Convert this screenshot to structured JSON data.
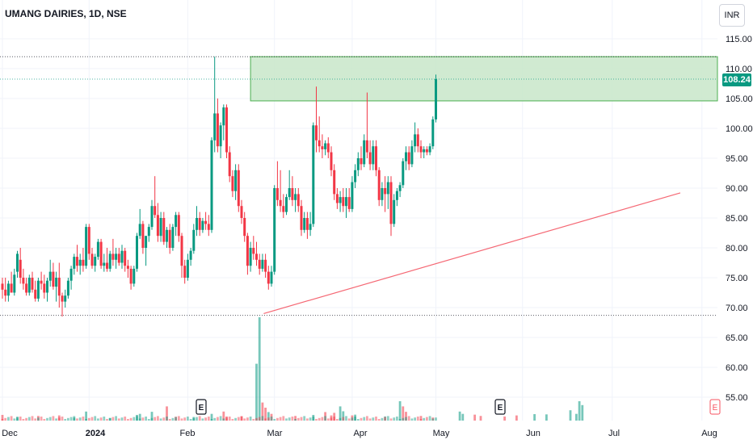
{
  "header": {
    "title": "UMANG DAIRIES, 1D, NSE",
    "currency": "INR",
    "last_price_label": "108.24"
  },
  "colors": {
    "up": "#089981",
    "down": "#f23645",
    "zone_fill": "#c8e6c9",
    "zone_border": "#4caf50",
    "trendline": "#f23645",
    "price_tag": "#089981"
  },
  "chart_data": {
    "type": "candlestick",
    "symbol": "UMANG DAIRIES",
    "interval": "1D",
    "exchange": "NSE",
    "currency": "INR",
    "ylim": [
      51,
      118
    ],
    "y_ticks": [
      "115.00",
      "110.00",
      "105.00",
      "100.00",
      "95.00",
      "90.00",
      "85.00",
      "80.00",
      "75.00",
      "70.00",
      "65.00",
      "60.00",
      "55.00"
    ],
    "x_ticks": [
      "Dec",
      "2024",
      "Feb",
      "Mar",
      "Apr",
      "May",
      "Jun",
      "Jul",
      "Aug"
    ],
    "last_price": 108.24,
    "resistance_zone": {
      "low": 104.6,
      "high": 112.0
    },
    "horizontal_levels": [
      112.0,
      108.24,
      68.7
    ],
    "trendline": {
      "start": {
        "bar": 82,
        "price": 69.0
      },
      "end": {
        "bar": 200,
        "price": 89.2
      }
    },
    "events": [
      {
        "bar": 60,
        "label": "E"
      },
      {
        "bar": 150,
        "label": "E"
      },
      {
        "bar": 213,
        "label": "E"
      }
    ],
    "candles": [
      {
        "o": 74,
        "h": 75,
        "l": 71.5,
        "c": 73
      },
      {
        "o": 73,
        "h": 75,
        "l": 71,
        "c": 72
      },
      {
        "o": 72,
        "h": 74.5,
        "l": 71,
        "c": 74
      },
      {
        "o": 74,
        "h": 76,
        "l": 73,
        "c": 72.5
      },
      {
        "o": 72.5,
        "h": 76.5,
        "l": 72,
        "c": 75.5
      },
      {
        "o": 76,
        "h": 79.5,
        "l": 75,
        "c": 79
      },
      {
        "o": 78,
        "h": 80,
        "l": 74,
        "c": 75
      },
      {
        "o": 75,
        "h": 76.5,
        "l": 73,
        "c": 74
      },
      {
        "o": 74,
        "h": 75,
        "l": 72,
        "c": 72.5
      },
      {
        "o": 72.5,
        "h": 75.5,
        "l": 72,
        "c": 75
      },
      {
        "o": 75,
        "h": 76,
        "l": 72.5,
        "c": 73
      },
      {
        "o": 73,
        "h": 74.5,
        "l": 71,
        "c": 71.5
      },
      {
        "o": 71.5,
        "h": 75,
        "l": 71,
        "c": 74.5
      },
      {
        "o": 74.5,
        "h": 76,
        "l": 73,
        "c": 74
      },
      {
        "o": 74,
        "h": 75.5,
        "l": 71.5,
        "c": 72.5
      },
      {
        "o": 72.5,
        "h": 75,
        "l": 71,
        "c": 74.5
      },
      {
        "o": 74.5,
        "h": 78,
        "l": 73.5,
        "c": 76
      },
      {
        "o": 76,
        "h": 77.5,
        "l": 73,
        "c": 73.5
      },
      {
        "o": 73.5,
        "h": 76,
        "l": 71,
        "c": 75
      },
      {
        "o": 75,
        "h": 77.5,
        "l": 70,
        "c": 72
      },
      {
        "o": 72,
        "h": 72.5,
        "l": 68.5,
        "c": 71
      },
      {
        "o": 71,
        "h": 73,
        "l": 70,
        "c": 72
      },
      {
        "o": 72,
        "h": 75,
        "l": 71.5,
        "c": 74.5
      },
      {
        "o": 74.5,
        "h": 77,
        "l": 73,
        "c": 76.5
      },
      {
        "o": 76.5,
        "h": 79,
        "l": 75.5,
        "c": 78.5
      },
      {
        "o": 78.5,
        "h": 80.5,
        "l": 76,
        "c": 77
      },
      {
        "o": 77,
        "h": 79,
        "l": 75.5,
        "c": 78
      },
      {
        "o": 78,
        "h": 80,
        "l": 76,
        "c": 77
      },
      {
        "o": 77,
        "h": 84,
        "l": 76.5,
        "c": 83.5
      },
      {
        "o": 83.5,
        "h": 84,
        "l": 78,
        "c": 79
      },
      {
        "o": 79,
        "h": 80,
        "l": 76.5,
        "c": 77
      },
      {
        "o": 77,
        "h": 79,
        "l": 76,
        "c": 78.5
      },
      {
        "o": 78.5,
        "h": 81.5,
        "l": 78,
        "c": 81
      },
      {
        "o": 81,
        "h": 81.5,
        "l": 76.5,
        "c": 77
      },
      {
        "o": 77,
        "h": 79,
        "l": 76,
        "c": 77.5
      },
      {
        "o": 77.5,
        "h": 80,
        "l": 76,
        "c": 76.5
      },
      {
        "o": 76.5,
        "h": 79.5,
        "l": 76,
        "c": 79
      },
      {
        "o": 79,
        "h": 81.5,
        "l": 77,
        "c": 78
      },
      {
        "o": 78,
        "h": 80,
        "l": 76.5,
        "c": 79
      },
      {
        "o": 79,
        "h": 80,
        "l": 77,
        "c": 77.5
      },
      {
        "o": 77.5,
        "h": 80.5,
        "l": 76.5,
        "c": 79.5
      },
      {
        "o": 79.5,
        "h": 80,
        "l": 76,
        "c": 77
      },
      {
        "o": 77,
        "h": 78,
        "l": 75,
        "c": 76.5
      },
      {
        "o": 76.5,
        "h": 77,
        "l": 73,
        "c": 74
      },
      {
        "o": 74,
        "h": 77,
        "l": 73.5,
        "c": 76.5
      },
      {
        "o": 76.5,
        "h": 82.5,
        "l": 76,
        "c": 82
      },
      {
        "o": 82,
        "h": 86.5,
        "l": 81.5,
        "c": 84
      },
      {
        "o": 84,
        "h": 84.5,
        "l": 79,
        "c": 80
      },
      {
        "o": 80,
        "h": 82,
        "l": 77,
        "c": 82
      },
      {
        "o": 82,
        "h": 84,
        "l": 81,
        "c": 83.5
      },
      {
        "o": 83.5,
        "h": 88,
        "l": 83,
        "c": 87
      },
      {
        "o": 87,
        "h": 92,
        "l": 85,
        "c": 85.5
      },
      {
        "o": 85.5,
        "h": 87.5,
        "l": 81,
        "c": 82
      },
      {
        "o": 82,
        "h": 86,
        "l": 81,
        "c": 85
      },
      {
        "o": 85,
        "h": 86,
        "l": 80.5,
        "c": 81
      },
      {
        "o": 81,
        "h": 83.5,
        "l": 80,
        "c": 83
      },
      {
        "o": 83,
        "h": 84,
        "l": 79,
        "c": 80
      },
      {
        "o": 80,
        "h": 84,
        "l": 79.5,
        "c": 83.5
      },
      {
        "o": 83.5,
        "h": 86,
        "l": 82,
        "c": 85.5
      },
      {
        "o": 85.5,
        "h": 86,
        "l": 81,
        "c": 82
      },
      {
        "o": 82,
        "h": 82.5,
        "l": 75,
        "c": 77
      },
      {
        "o": 77,
        "h": 78,
        "l": 74,
        "c": 75
      },
      {
        "o": 75,
        "h": 79,
        "l": 74.5,
        "c": 78
      },
      {
        "o": 78,
        "h": 80,
        "l": 77,
        "c": 79.5
      },
      {
        "o": 79.5,
        "h": 84,
        "l": 79,
        "c": 83
      },
      {
        "o": 83,
        "h": 87,
        "l": 82,
        "c": 85
      },
      {
        "o": 85,
        "h": 86,
        "l": 82,
        "c": 83
      },
      {
        "o": 83,
        "h": 85,
        "l": 82.5,
        "c": 84.5
      },
      {
        "o": 84.5,
        "h": 86,
        "l": 83,
        "c": 84
      },
      {
        "o": 84,
        "h": 85.5,
        "l": 82,
        "c": 83
      },
      {
        "o": 83,
        "h": 98.5,
        "l": 82.5,
        "c": 98
      },
      {
        "o": 98,
        "h": 112,
        "l": 96,
        "c": 102.5
      },
      {
        "o": 102.5,
        "h": 105,
        "l": 96,
        "c": 97
      },
      {
        "o": 97,
        "h": 101,
        "l": 95,
        "c": 100.5
      },
      {
        "o": 100.5,
        "h": 104,
        "l": 98,
        "c": 103.5
      },
      {
        "o": 103.5,
        "h": 104,
        "l": 95,
        "c": 96
      },
      {
        "o": 96,
        "h": 97,
        "l": 91,
        "c": 92
      },
      {
        "o": 92,
        "h": 93,
        "l": 88.5,
        "c": 89.5
      },
      {
        "o": 89.5,
        "h": 94,
        "l": 88,
        "c": 93
      },
      {
        "o": 93,
        "h": 94,
        "l": 86,
        "c": 87
      },
      {
        "o": 87,
        "h": 88,
        "l": 84,
        "c": 85
      },
      {
        "o": 85,
        "h": 86,
        "l": 81,
        "c": 82
      },
      {
        "o": 82,
        "h": 82.5,
        "l": 75.5,
        "c": 77
      },
      {
        "o": 77,
        "h": 81,
        "l": 76,
        "c": 80
      },
      {
        "o": 80,
        "h": 82,
        "l": 78,
        "c": 79
      },
      {
        "o": 79,
        "h": 81,
        "l": 77,
        "c": 78
      },
      {
        "o": 78,
        "h": 79,
        "l": 75.5,
        "c": 76.5
      },
      {
        "o": 76.5,
        "h": 79,
        "l": 76,
        "c": 78
      },
      {
        "o": 78,
        "h": 79,
        "l": 75,
        "c": 76
      },
      {
        "o": 76,
        "h": 77,
        "l": 73,
        "c": 74
      },
      {
        "o": 74,
        "h": 77,
        "l": 73.5,
        "c": 76
      },
      {
        "o": 76,
        "h": 90.5,
        "l": 75.5,
        "c": 90
      },
      {
        "o": 90,
        "h": 94.5,
        "l": 87,
        "c": 88
      },
      {
        "o": 88,
        "h": 93,
        "l": 86,
        "c": 87
      },
      {
        "o": 87,
        "h": 89,
        "l": 85,
        "c": 86
      },
      {
        "o": 86,
        "h": 89,
        "l": 85.5,
        "c": 88.5
      },
      {
        "o": 88.5,
        "h": 93,
        "l": 88,
        "c": 90
      },
      {
        "o": 90,
        "h": 92,
        "l": 87,
        "c": 88
      },
      {
        "o": 88,
        "h": 90,
        "l": 86,
        "c": 89
      },
      {
        "o": 89,
        "h": 90,
        "l": 86,
        "c": 87
      },
      {
        "o": 87,
        "h": 88,
        "l": 82,
        "c": 83
      },
      {
        "o": 83,
        "h": 86,
        "l": 82.5,
        "c": 85
      },
      {
        "o": 85,
        "h": 86,
        "l": 81.5,
        "c": 83
      },
      {
        "o": 83,
        "h": 86,
        "l": 82,
        "c": 84
      },
      {
        "o": 84,
        "h": 101,
        "l": 83.5,
        "c": 100.5
      },
      {
        "o": 100.5,
        "h": 107,
        "l": 96,
        "c": 98
      },
      {
        "o": 98,
        "h": 102,
        "l": 96,
        "c": 97
      },
      {
        "o": 97,
        "h": 99,
        "l": 95,
        "c": 96.5
      },
      {
        "o": 96.5,
        "h": 98,
        "l": 95.5,
        "c": 97.5
      },
      {
        "o": 97.5,
        "h": 98.5,
        "l": 95,
        "c": 96
      },
      {
        "o": 96,
        "h": 97,
        "l": 92,
        "c": 93
      },
      {
        "o": 93,
        "h": 94,
        "l": 88,
        "c": 89
      },
      {
        "o": 89,
        "h": 90,
        "l": 86.5,
        "c": 87.5
      },
      {
        "o": 87.5,
        "h": 89.5,
        "l": 86,
        "c": 88.5
      },
      {
        "o": 88.5,
        "h": 90,
        "l": 86,
        "c": 87
      },
      {
        "o": 87,
        "h": 90,
        "l": 85,
        "c": 88.5
      },
      {
        "o": 88.5,
        "h": 90,
        "l": 86,
        "c": 86.5
      },
      {
        "o": 86.5,
        "h": 92,
        "l": 86,
        "c": 91
      },
      {
        "o": 91,
        "h": 94,
        "l": 90,
        "c": 93
      },
      {
        "o": 93,
        "h": 96,
        "l": 92,
        "c": 95
      },
      {
        "o": 95,
        "h": 97,
        "l": 93,
        "c": 94
      },
      {
        "o": 94,
        "h": 99,
        "l": 93.5,
        "c": 98
      },
      {
        "o": 98,
        "h": 106,
        "l": 95,
        "c": 96
      },
      {
        "o": 96,
        "h": 98,
        "l": 93,
        "c": 94
      },
      {
        "o": 94,
        "h": 98,
        "l": 93,
        "c": 97
      },
      {
        "o": 97,
        "h": 98,
        "l": 92,
        "c": 93
      },
      {
        "o": 93,
        "h": 93.5,
        "l": 87,
        "c": 88
      },
      {
        "o": 88,
        "h": 91,
        "l": 87,
        "c": 90
      },
      {
        "o": 90,
        "h": 92,
        "l": 86,
        "c": 89
      },
      {
        "o": 89,
        "h": 92,
        "l": 86.5,
        "c": 91
      },
      {
        "o": 91,
        "h": 92,
        "l": 82,
        "c": 84
      },
      {
        "o": 84,
        "h": 89,
        "l": 83.5,
        "c": 88
      },
      {
        "o": 88,
        "h": 90,
        "l": 87,
        "c": 89.5
      },
      {
        "o": 89.5,
        "h": 91,
        "l": 88.5,
        "c": 90.5
      },
      {
        "o": 90.5,
        "h": 95,
        "l": 90,
        "c": 94.5
      },
      {
        "o": 94.5,
        "h": 97,
        "l": 93,
        "c": 96
      },
      {
        "o": 96,
        "h": 97,
        "l": 93,
        "c": 94
      },
      {
        "o": 94,
        "h": 98,
        "l": 93.5,
        "c": 97
      },
      {
        "o": 97,
        "h": 101,
        "l": 96,
        "c": 99
      },
      {
        "o": 99,
        "h": 100,
        "l": 96,
        "c": 97
      },
      {
        "o": 97,
        "h": 98,
        "l": 95,
        "c": 96
      },
      {
        "o": 96,
        "h": 97,
        "l": 95,
        "c": 96.5
      },
      {
        "o": 96.5,
        "h": 97,
        "l": 95.5,
        "c": 96
      },
      {
        "o": 96,
        "h": 97.5,
        "l": 95.5,
        "c": 97
      },
      {
        "o": 97,
        "h": 102,
        "l": 96.5,
        "c": 101.5
      },
      {
        "o": 101.5,
        "h": 109,
        "l": 101,
        "c": 108.24
      }
    ],
    "volume_bars": [
      {
        "bar": 0,
        "v": 2.2,
        "d": "dn"
      },
      {
        "bar": 5,
        "v": 1.5,
        "d": "up"
      },
      {
        "bar": 12,
        "v": 1.8,
        "d": "dn"
      },
      {
        "bar": 19,
        "v": 2.0,
        "d": "dn"
      },
      {
        "bar": 24,
        "v": 1.2,
        "d": "up"
      },
      {
        "bar": 28,
        "v": 3.5,
        "d": "up"
      },
      {
        "bar": 36,
        "v": 1.0,
        "d": "up"
      },
      {
        "bar": 45,
        "v": 2.2,
        "d": "up"
      },
      {
        "bar": 46,
        "v": 2.6,
        "d": "up"
      },
      {
        "bar": 50,
        "v": 3.4,
        "d": "up"
      },
      {
        "bar": 55,
        "v": 5.5,
        "d": "dn"
      },
      {
        "bar": 58,
        "v": 1.5,
        "d": "dn"
      },
      {
        "bar": 64,
        "v": 1.4,
        "d": "up"
      },
      {
        "bar": 70,
        "v": 2.6,
        "d": "up"
      },
      {
        "bar": 74,
        "v": 3.5,
        "d": "dn"
      },
      {
        "bar": 75,
        "v": 1.6,
        "d": "dn"
      },
      {
        "bar": 80,
        "v": 1.6,
        "d": "dn"
      },
      {
        "bar": 85,
        "v": 22,
        "d": "up"
      },
      {
        "bar": 86,
        "v": 40,
        "d": "up"
      },
      {
        "bar": 87,
        "v": 7,
        "d": "dn"
      },
      {
        "bar": 88,
        "v": 5.0,
        "d": "dn"
      },
      {
        "bar": 89,
        "v": 3.3,
        "d": "up"
      },
      {
        "bar": 90,
        "v": 2.6,
        "d": "dn"
      },
      {
        "bar": 98,
        "v": 1.8,
        "d": "dn"
      },
      {
        "bar": 104,
        "v": 2.2,
        "d": "up"
      },
      {
        "bar": 108,
        "v": 3.3,
        "d": "dn"
      },
      {
        "bar": 110,
        "v": 2.0,
        "d": "dn"
      },
      {
        "bar": 111,
        "v": 3.0,
        "d": "dn"
      },
      {
        "bar": 113,
        "v": 5.5,
        "d": "up"
      },
      {
        "bar": 114,
        "v": 3.6,
        "d": "up"
      },
      {
        "bar": 117,
        "v": 2.0,
        "d": "dn"
      },
      {
        "bar": 118,
        "v": 2.3,
        "d": "up"
      },
      {
        "bar": 128,
        "v": 1.6,
        "d": "up"
      },
      {
        "bar": 133,
        "v": 7.5,
        "d": "up"
      },
      {
        "bar": 134,
        "v": 5.5,
        "d": "dn"
      },
      {
        "bar": 135,
        "v": 3.4,
        "d": "dn"
      },
      {
        "bar": 140,
        "v": 1.8,
        "d": "dn"
      },
      {
        "bar": 144,
        "v": 1.2,
        "d": "dn"
      },
      {
        "bar": 153,
        "v": 3.5,
        "d": "up"
      },
      {
        "bar": 154,
        "v": 2.6,
        "d": "up"
      },
      {
        "bar": 158,
        "v": 2.3,
        "d": "dn"
      },
      {
        "bar": 160,
        "v": 1.8,
        "d": "dn"
      },
      {
        "bar": 168,
        "v": 1.6,
        "d": "dn"
      },
      {
        "bar": 172,
        "v": 2.0,
        "d": "dn"
      },
      {
        "bar": 178,
        "v": 2.5,
        "d": "up"
      },
      {
        "bar": 182,
        "v": 2.4,
        "d": "up"
      },
      {
        "bar": 190,
        "v": 4.0,
        "d": "up"
      },
      {
        "bar": 192,
        "v": 2.6,
        "d": "up"
      },
      {
        "bar": 193,
        "v": 7.5,
        "d": "up"
      },
      {
        "bar": 194,
        "v": 6.0,
        "d": "up"
      }
    ]
  }
}
